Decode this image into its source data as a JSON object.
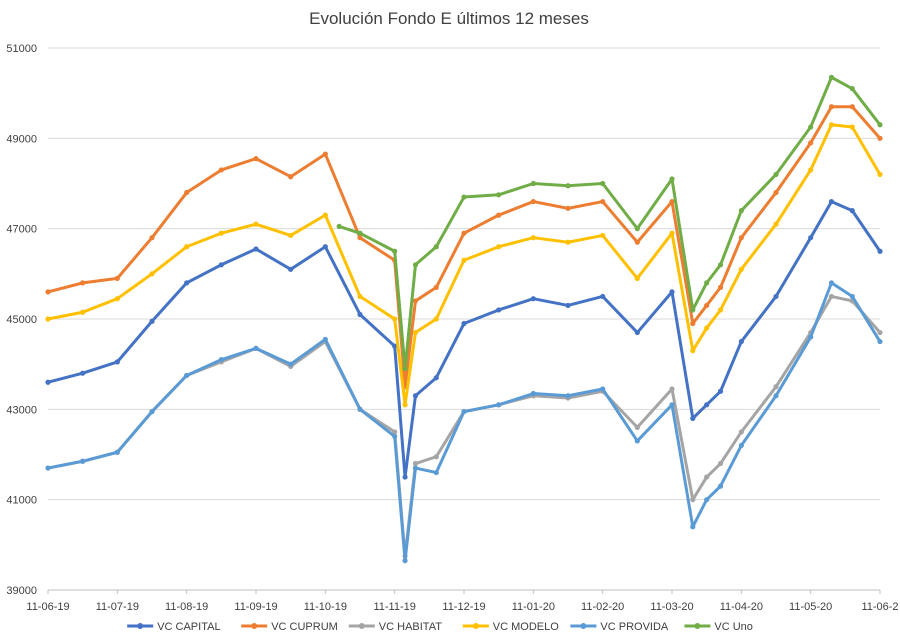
{
  "chart_data": {
    "type": "line",
    "title": "Evolución Fondo E últimos 12 meses",
    "xlabel": "",
    "ylabel": "",
    "ylim": [
      39000,
      51000
    ],
    "yticks": [
      39000,
      41000,
      43000,
      45000,
      47000,
      49000,
      51000
    ],
    "ytick_labels": [
      "39000",
      "41000",
      "43000",
      "45000",
      "47000",
      "49000",
      "51000"
    ],
    "x_range": [
      0,
      12
    ],
    "xtick_labels": [
      "11-06-19",
      "11-07-19",
      "11-08-19",
      "11-09-19",
      "11-10-19",
      "11-11-19",
      "11-12-19",
      "11-01-20",
      "11-02-20",
      "11-03-20",
      "11-04-20",
      "11-05-20",
      "11-06-2"
    ],
    "grid": "horizontal",
    "legend_position": "bottom",
    "x_unit": "months since 11-06-19",
    "series": [
      {
        "name": "VC CAPITAL",
        "color": "#4472C4",
        "x": [
          0,
          0.5,
          1,
          1.5,
          2,
          2.5,
          3,
          3.5,
          4,
          4.5,
          5,
          5.15,
          5.3,
          5.6,
          6,
          6.5,
          7,
          7.5,
          8,
          8.5,
          9,
          9.3,
          9.5,
          9.7,
          10,
          10.5,
          11,
          11.3,
          11.6,
          12
        ],
        "y": [
          43600,
          43800,
          44050,
          44950,
          45800,
          46200,
          46550,
          46100,
          46600,
          45100,
          44400,
          41500,
          43300,
          43700,
          44900,
          45200,
          45450,
          45300,
          45500,
          44700,
          45600,
          42800,
          43100,
          43400,
          44500,
          45500,
          46800,
          47600,
          47400,
          46500
        ]
      },
      {
        "name": "VC CUPRUM",
        "color": "#ED7D31",
        "x": [
          0,
          0.5,
          1,
          1.5,
          2,
          2.5,
          3,
          3.5,
          4,
          4.5,
          5,
          5.15,
          5.3,
          5.6,
          6,
          6.5,
          7,
          7.5,
          8,
          8.5,
          9,
          9.3,
          9.5,
          9.7,
          10,
          10.5,
          11,
          11.3,
          11.6,
          12
        ],
        "y": [
          45600,
          45800,
          45900,
          46800,
          47800,
          48300,
          48550,
          48150,
          48650,
          46800,
          46300,
          43500,
          45400,
          45700,
          46900,
          47300,
          47600,
          47450,
          47600,
          46700,
          47600,
          44900,
          45300,
          45700,
          46800,
          47800,
          48900,
          49700,
          49700,
          49000
        ]
      },
      {
        "name": "VC HABITAT",
        "color": "#A5A5A5",
        "x": [
          0,
          0.5,
          1,
          1.5,
          2,
          2.5,
          3,
          3.5,
          4,
          4.5,
          5,
          5.15,
          5.3,
          5.6,
          6,
          6.5,
          7,
          7.5,
          8,
          8.5,
          9,
          9.3,
          9.5,
          9.7,
          10,
          10.5,
          11,
          11.3,
          11.6,
          12
        ],
        "y": [
          41700,
          41850,
          42050,
          42950,
          43750,
          44050,
          44350,
          43950,
          44500,
          43000,
          42500,
          39750,
          41800,
          41950,
          42950,
          43100,
          43300,
          43250,
          43400,
          42600,
          43450,
          41000,
          41500,
          41800,
          42500,
          43500,
          44700,
          45500,
          45400,
          44700
        ]
      },
      {
        "name": "VC MODELO",
        "color": "#FFC000",
        "x": [
          0,
          0.5,
          1,
          1.5,
          2,
          2.5,
          3,
          3.5,
          4,
          4.5,
          5,
          5.15,
          5.3,
          5.6,
          6,
          6.5,
          7,
          7.5,
          8,
          8.5,
          9,
          9.3,
          9.5,
          9.7,
          10,
          10.5,
          11,
          11.3,
          11.6,
          12
        ],
        "y": [
          45000,
          45150,
          45450,
          46000,
          46600,
          46900,
          47100,
          46850,
          47300,
          45500,
          45000,
          43100,
          44700,
          45000,
          46300,
          46600,
          46800,
          46700,
          46850,
          45900,
          46900,
          44300,
          44800,
          45200,
          46100,
          47100,
          48300,
          49300,
          49250,
          48200
        ]
      },
      {
        "name": "VC PROVIDA",
        "color": "#5B9BD5",
        "x": [
          0,
          0.5,
          1,
          1.5,
          2,
          2.5,
          3,
          3.5,
          4,
          4.5,
          5,
          5.15,
          5.3,
          5.6,
          6,
          6.5,
          7,
          7.5,
          8,
          8.5,
          9,
          9.3,
          9.5,
          9.7,
          10,
          10.5,
          11,
          11.3,
          11.6,
          12
        ],
        "y": [
          41700,
          41850,
          42050,
          42950,
          43750,
          44100,
          44350,
          44000,
          44550,
          43000,
          42400,
          39650,
          41700,
          41600,
          42950,
          43100,
          43350,
          43300,
          43450,
          42300,
          43100,
          40400,
          41000,
          41300,
          42200,
          43300,
          44600,
          45800,
          45500,
          44500
        ]
      },
      {
        "name": "VC Uno",
        "color": "#70AD47",
        "x": [
          4.2,
          4.5,
          5,
          5.15,
          5.3,
          5.6,
          6,
          6.5,
          7,
          7.5,
          8,
          8.5,
          9,
          9.3,
          9.5,
          9.7,
          10,
          10.5,
          11,
          11.3,
          11.6,
          12
        ],
        "y": [
          47050,
          46900,
          46500,
          43900,
          46200,
          46600,
          47700,
          47750,
          48000,
          47950,
          48000,
          47000,
          48100,
          45200,
          45800,
          46200,
          47400,
          48200,
          49250,
          50350,
          50100,
          49300
        ]
      }
    ]
  }
}
